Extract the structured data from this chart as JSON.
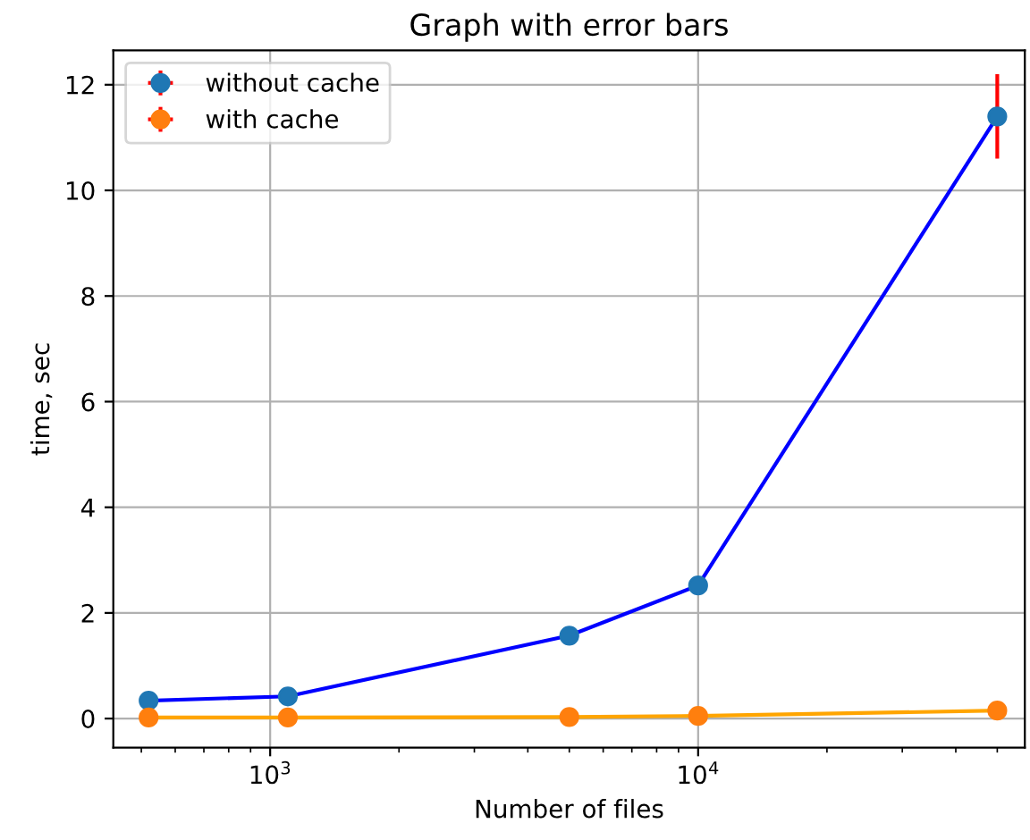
{
  "chart_data": {
    "type": "line",
    "title": "Graph with error bars",
    "xlabel": "Number of files",
    "ylabel": "time, sec",
    "log": "x",
    "xlim": [
      430,
      58000
    ],
    "xticks": [
      {
        "value": 1000,
        "label": "10$^{3}$"
      },
      {
        "value": 10000,
        "label": "10$^{4}$"
      }
    ],
    "ylim": [
      -0.55,
      12.65
    ],
    "yticks": [
      0,
      2,
      4,
      6,
      8,
      10,
      12
    ],
    "grid": true,
    "legend": "top left",
    "marker": "circle",
    "series": [
      {
        "name": "without cache",
        "color": "#0000ff",
        "colors": [
          "#1f77b4",
          "#1f77b4",
          "#1f77b4",
          "#1f77b4",
          "#1f77b4"
        ],
        "x": [
          520,
          1100,
          5000,
          10000,
          50000
        ],
        "values": [
          0.34,
          0.42,
          1.57,
          2.52,
          11.4
        ],
        "errors": [
          null,
          null,
          null,
          null,
          0.8
        ]
      },
      {
        "name": "with cache",
        "color": "#ffa500",
        "colors": [
          "#ff7f0e",
          "#ff7f0e",
          "#ff7f0e",
          "#ff7f0e",
          "#ff7f0e"
        ],
        "x": [
          520,
          1100,
          5000,
          10000,
          50000
        ],
        "values": [
          0.02,
          0.02,
          0.03,
          0.05,
          0.15
        ],
        "errors": [
          null,
          null,
          null,
          null,
          null
        ]
      }
    ]
  }
}
